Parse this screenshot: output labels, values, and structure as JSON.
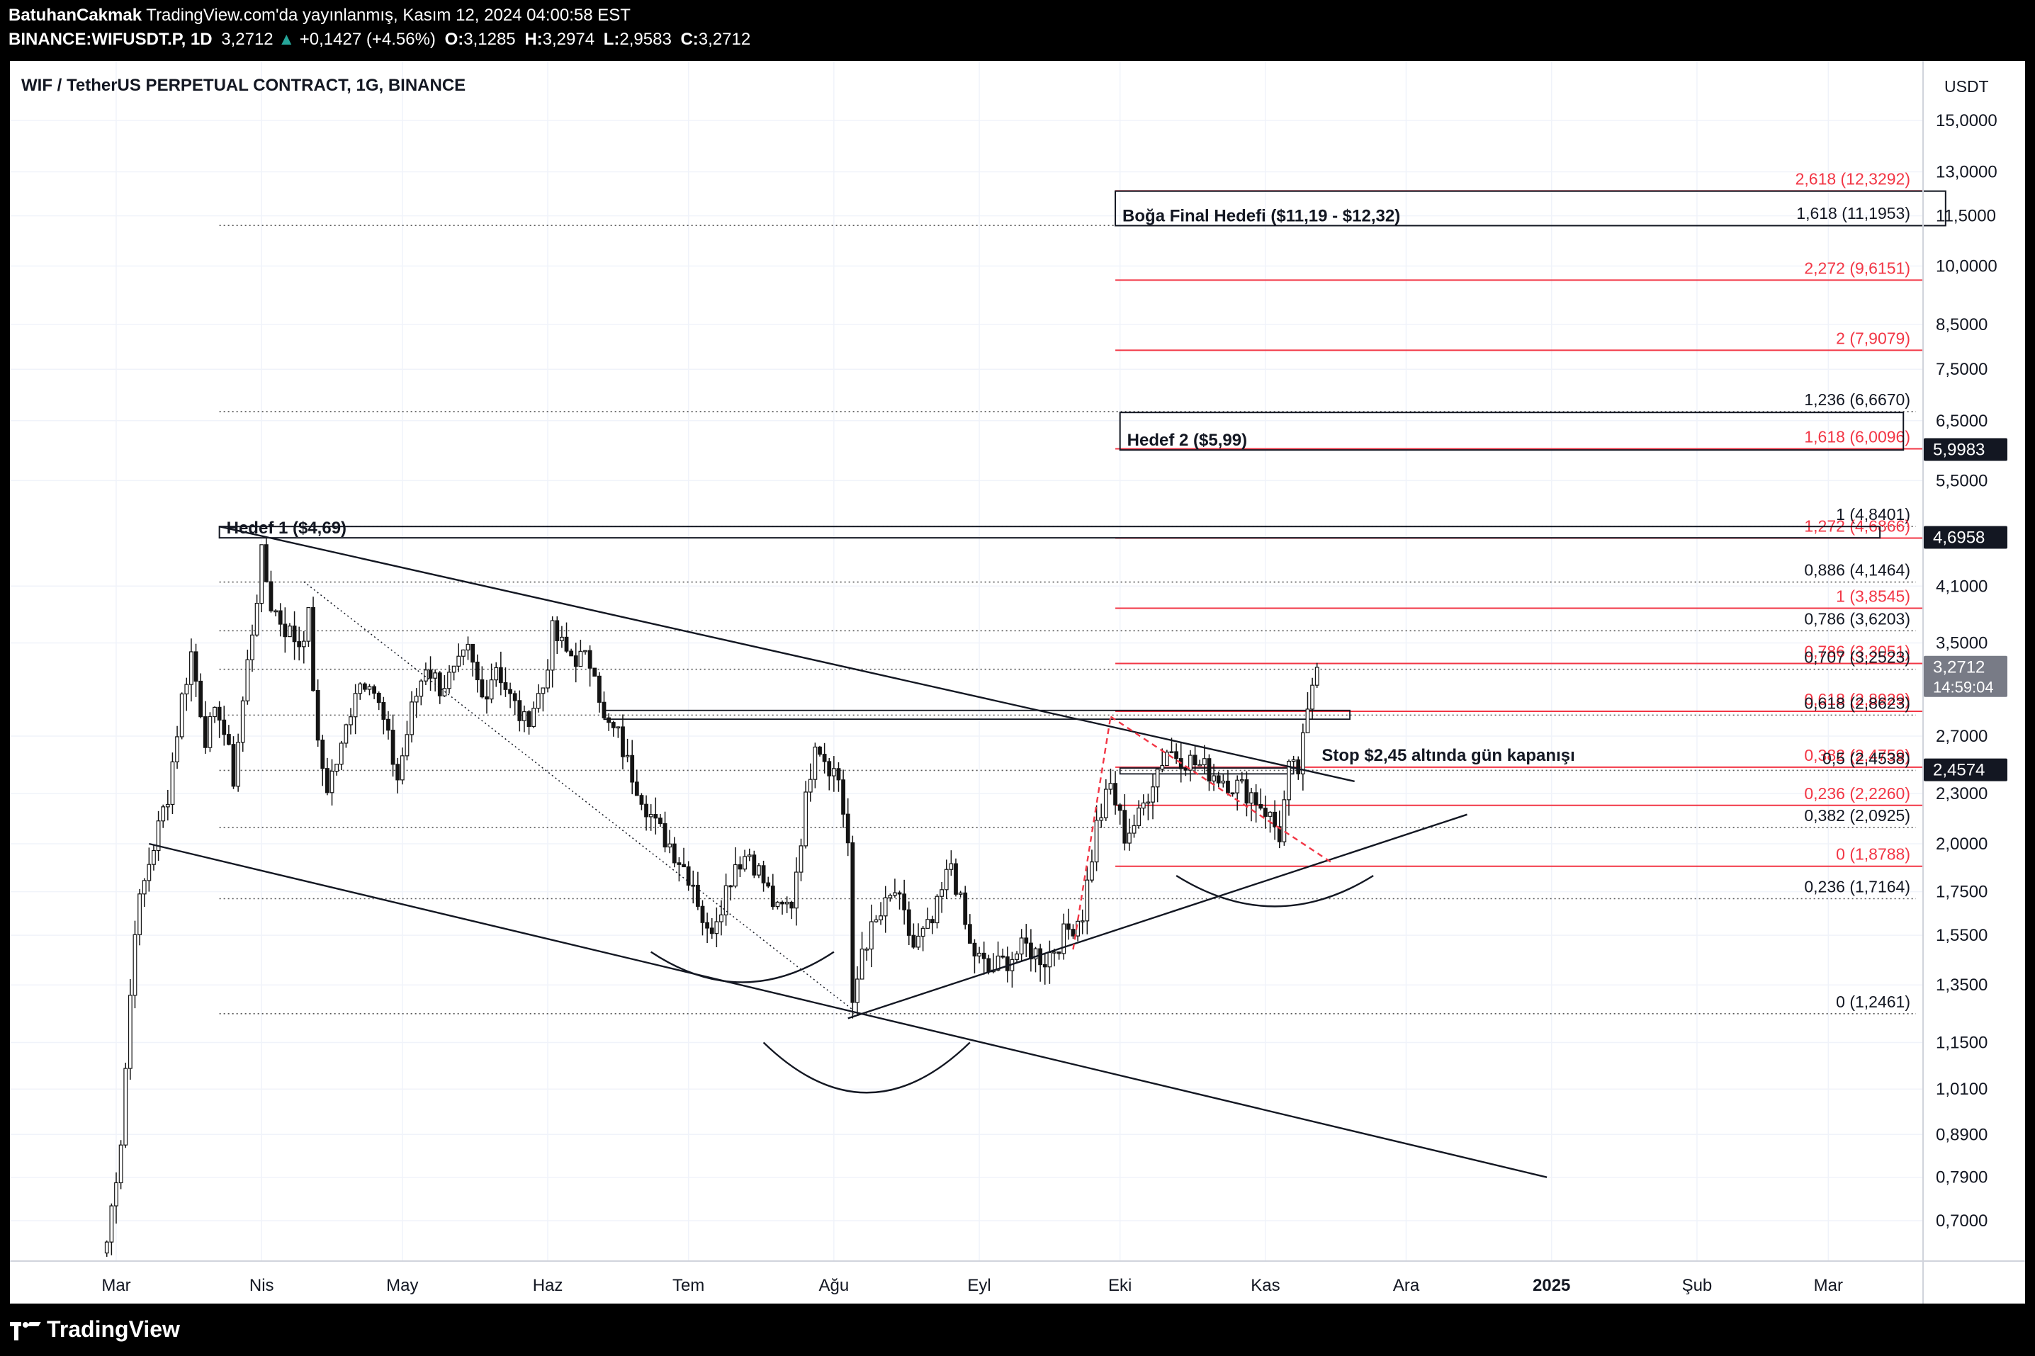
{
  "header": {
    "author": "BatuhanCakmak",
    "published": "TradingView.com'da yayınlanmış, Kasım 12, 2024 04:00:58 EST",
    "symbol": "BINANCE:WIFUSDT.P, 1D",
    "last": "3,2712",
    "change": "+0,1427 (+4.56%)",
    "o_label": "O:",
    "o_val": "3,1285",
    "h_label": "H:",
    "h_val": "3,2974",
    "l_label": "L:",
    "l_val": "2,9583",
    "c_label": "C:",
    "c_val": "3,2712"
  },
  "chart_title": "WIF / TetherUS PERPETUAL CONTRACT, 1G, BINANCE",
  "currency": "USDT",
  "footer": {
    "brand": "TradingView"
  },
  "colors": {
    "candle": "#141414",
    "accent_red": "#f23645",
    "background": "#ffffff"
  },
  "chart_data": {
    "type": "candlestick",
    "scale": "log",
    "y_ticks": [
      {
        "value": 15.0,
        "label": "15,0000"
      },
      {
        "value": 13.0,
        "label": "13,0000"
      },
      {
        "value": 11.5,
        "label": "11,5000"
      },
      {
        "value": 10.0,
        "label": "10,0000"
      },
      {
        "value": 8.5,
        "label": "8,5000"
      },
      {
        "value": 7.5,
        "label": "7,5000"
      },
      {
        "value": 6.5,
        "label": "6,5000"
      },
      {
        "value": 5.5,
        "label": "5,5000"
      },
      {
        "value": 4.1,
        "label": "4,1000"
      },
      {
        "value": 3.5,
        "label": "3,5000"
      },
      {
        "value": 2.7,
        "label": "2,7000"
      },
      {
        "value": 2.3,
        "label": "2,3000"
      },
      {
        "value": 2.0,
        "label": "2,0000"
      },
      {
        "value": 1.75,
        "label": "1,7500"
      },
      {
        "value": 1.55,
        "label": "1,5500"
      },
      {
        "value": 1.35,
        "label": "1,3500"
      },
      {
        "value": 1.15,
        "label": "1,1500"
      },
      {
        "value": 1.01,
        "label": "1,0100"
      },
      {
        "value": 0.89,
        "label": "0,8900"
      },
      {
        "value": 0.79,
        "label": "0,7900"
      },
      {
        "value": 0.7,
        "label": "0,7000"
      }
    ],
    "x_ticks": [
      {
        "date": "2024-03-01",
        "label": "Mar",
        "bold": false
      },
      {
        "date": "2024-04-01",
        "label": "Nis",
        "bold": false
      },
      {
        "date": "2024-05-01",
        "label": "May",
        "bold": false
      },
      {
        "date": "2024-06-01",
        "label": "Haz",
        "bold": false
      },
      {
        "date": "2024-07-01",
        "label": "Tem",
        "bold": false
      },
      {
        "date": "2024-08-01",
        "label": "Ağu",
        "bold": false
      },
      {
        "date": "2024-09-01",
        "label": "Eyl",
        "bold": false
      },
      {
        "date": "2024-10-01",
        "label": "Eki",
        "bold": false
      },
      {
        "date": "2024-11-01",
        "label": "Kas",
        "bold": false
      },
      {
        "date": "2024-12-01",
        "label": "Ara",
        "bold": false
      },
      {
        "date": "2025-01-01",
        "label": "2025",
        "bold": true
      },
      {
        "date": "2025-02-01",
        "label": "Şub",
        "bold": false
      },
      {
        "date": "2025-03-01",
        "label": "Mar",
        "bold": false
      }
    ],
    "price_anchors": [
      [
        "2024-02-28",
        0.66
      ],
      [
        "2024-03-02",
        0.88
      ],
      [
        "2024-03-05",
        1.6
      ],
      [
        "2024-03-08",
        1.9
      ],
      [
        "2024-03-12",
        2.3
      ],
      [
        "2024-03-15",
        3.0
      ],
      [
        "2024-03-17",
        3.4
      ],
      [
        "2024-03-20",
        2.7
      ],
      [
        "2024-03-23",
        2.9
      ],
      [
        "2024-03-26",
        2.4
      ],
      [
        "2024-03-29",
        3.3
      ],
      [
        "2024-03-31",
        4.0
      ],
      [
        "2024-04-01",
        4.45
      ],
      [
        "2024-04-03",
        3.9
      ],
      [
        "2024-04-06",
        3.65
      ],
      [
        "2024-04-09",
        3.5
      ],
      [
        "2024-04-11",
        3.75
      ],
      [
        "2024-04-13",
        2.6
      ],
      [
        "2024-04-15",
        2.35
      ],
      [
        "2024-04-18",
        2.6
      ],
      [
        "2024-04-21",
        3.1
      ],
      [
        "2024-04-24",
        3.2
      ],
      [
        "2024-04-27",
        2.8
      ],
      [
        "2024-04-30",
        2.4
      ],
      [
        "2024-05-03",
        2.9
      ],
      [
        "2024-05-06",
        3.3
      ],
      [
        "2024-05-09",
        3.1
      ],
      [
        "2024-05-12",
        3.2
      ],
      [
        "2024-05-15",
        3.4
      ],
      [
        "2024-05-18",
        3.0
      ],
      [
        "2024-05-21",
        3.3
      ],
      [
        "2024-05-24",
        3.0
      ],
      [
        "2024-05-27",
        2.8
      ],
      [
        "2024-05-31",
        3.1
      ],
      [
        "2024-06-02",
        3.6
      ],
      [
        "2024-06-05",
        3.4
      ],
      [
        "2024-06-08",
        3.35
      ],
      [
        "2024-06-11",
        3.3
      ],
      [
        "2024-06-13",
        2.8
      ],
      [
        "2024-06-16",
        2.7
      ],
      [
        "2024-06-18",
        2.5
      ],
      [
        "2024-06-21",
        2.3
      ],
      [
        "2024-06-24",
        2.1
      ],
      [
        "2024-06-27",
        2.0
      ],
      [
        "2024-07-02",
        1.8
      ],
      [
        "2024-07-05",
        1.55
      ],
      [
        "2024-07-08",
        1.7
      ],
      [
        "2024-07-11",
        1.9
      ],
      [
        "2024-07-14",
        1.95
      ],
      [
        "2024-07-17",
        1.8
      ],
      [
        "2024-07-20",
        1.65
      ],
      [
        "2024-07-23",
        1.7
      ],
      [
        "2024-07-26",
        2.25
      ],
      [
        "2024-07-28",
        2.7
      ],
      [
        "2024-07-30",
        2.55
      ],
      [
        "2024-08-02",
        2.4
      ],
      [
        "2024-08-04",
        2.0
      ],
      [
        "2024-08-05",
        1.25
      ],
      [
        "2024-08-07",
        1.5
      ],
      [
        "2024-08-10",
        1.6
      ],
      [
        "2024-08-14",
        1.75
      ],
      [
        "2024-08-18",
        1.5
      ],
      [
        "2024-08-22",
        1.6
      ],
      [
        "2024-08-26",
        1.9
      ],
      [
        "2024-08-30",
        1.5
      ],
      [
        "2024-09-03",
        1.4
      ],
      [
        "2024-09-07",
        1.45
      ],
      [
        "2024-09-11",
        1.5
      ],
      [
        "2024-09-15",
        1.45
      ],
      [
        "2024-09-19",
        1.55
      ],
      [
        "2024-09-23",
        1.65
      ],
      [
        "2024-09-26",
        2.1
      ],
      [
        "2024-09-29",
        2.35
      ],
      [
        "2024-10-02",
        2.05
      ],
      [
        "2024-10-05",
        2.15
      ],
      [
        "2024-10-08",
        2.4
      ],
      [
        "2024-10-11",
        2.6
      ],
      [
        "2024-10-14",
        2.55
      ],
      [
        "2024-10-17",
        2.5
      ],
      [
        "2024-10-20",
        2.45
      ],
      [
        "2024-10-23",
        2.4
      ],
      [
        "2024-10-26",
        2.35
      ],
      [
        "2024-10-29",
        2.3
      ],
      [
        "2024-11-01",
        2.2
      ],
      [
        "2024-11-04",
        2.05
      ],
      [
        "2024-11-06",
        2.45
      ],
      [
        "2024-11-08",
        2.45
      ],
      [
        "2024-11-10",
        2.85
      ],
      [
        "2024-11-11",
        3.13
      ],
      [
        "2024-11-12",
        3.27
      ]
    ],
    "fibonacci_levels": [
      {
        "label": "2,618 (12,3292)",
        "value": 12.3292,
        "style": "red-solid",
        "x_start": "2024-09-30"
      },
      {
        "label": "1,618 (11,1953)",
        "value": 11.1953,
        "style": "dotted",
        "x_start": "2024-03-23"
      },
      {
        "label": "2,272 (9,6151)",
        "value": 9.6151,
        "style": "red-solid",
        "x_start": "2024-09-30"
      },
      {
        "label": "2 (7,9079)",
        "value": 7.9079,
        "style": "red-solid",
        "x_start": "2024-09-30"
      },
      {
        "label": "1,236 (6,6670)",
        "value": 6.667,
        "style": "dotted",
        "x_start": "2024-03-23"
      },
      {
        "label": "1,618 (6,0096)",
        "value": 6.0096,
        "style": "red-solid",
        "x_start": "2024-09-30"
      },
      {
        "label": "1 (4,8401)",
        "value": 4.8401,
        "style": "dotted",
        "x_start": "2024-03-23"
      },
      {
        "label": "1,272 (4,6866)",
        "value": 4.6866,
        "style": "red-solid",
        "x_start": "2024-09-30"
      },
      {
        "label": "0,886 (4,1464)",
        "value": 4.1464,
        "style": "dotted",
        "x_start": "2024-03-23"
      },
      {
        "label": "1 (3,8545)",
        "value": 3.8545,
        "style": "red-solid",
        "x_start": "2024-09-30"
      },
      {
        "label": "0,786 (3,6203)",
        "value": 3.6203,
        "style": "dotted",
        "x_start": "2024-03-23"
      },
      {
        "label": "0,786 (3,3051)",
        "value": 3.3051,
        "style": "red-solid",
        "x_start": "2024-09-30"
      },
      {
        "label": "0,707 (3,2523)",
        "value": 3.2523,
        "style": "dotted",
        "x_start": "2024-03-23"
      },
      {
        "label": "0,618 (2,8929)",
        "value": 2.8929,
        "style": "red-solid",
        "x_start": "2024-09-30"
      },
      {
        "label": "0,618 (2,8623)",
        "value": 2.8623,
        "style": "dotted",
        "x_start": "2024-03-23"
      },
      {
        "label": "0,382 (2,4759)",
        "value": 2.4759,
        "style": "red-solid",
        "x_start": "2024-09-30"
      },
      {
        "label": "0,5 (2,4538)",
        "value": 2.4538,
        "style": "dotted",
        "x_start": "2024-03-23"
      },
      {
        "label": "0,236 (2,2260)",
        "value": 2.226,
        "style": "red-solid",
        "x_start": "2024-09-30"
      },
      {
        "label": "0,382 (2,0925)",
        "value": 2.0925,
        "style": "dotted",
        "x_start": "2024-03-23"
      },
      {
        "label": "0 (1,8788)",
        "value": 1.8788,
        "style": "red-solid",
        "x_start": "2024-09-30"
      },
      {
        "label": "0,236 (1,7164)",
        "value": 1.7164,
        "style": "dotted",
        "x_start": "2024-03-23"
      },
      {
        "label": "0 (1,2461)",
        "value": 1.2461,
        "style": "dotted",
        "x_start": "2024-03-23"
      }
    ],
    "price_badges": [
      {
        "label": "5,9983",
        "value": 5.9983,
        "style": "dark"
      },
      {
        "label": "4,6958",
        "value": 4.6958,
        "style": "dark"
      },
      {
        "label": "3,2712",
        "sub": "14:59:04",
        "value": 3.2712,
        "style": "gray"
      },
      {
        "label": "2,4574",
        "value": 2.4574,
        "style": "dark"
      }
    ],
    "target_boxes": [
      {
        "label": "Boğa Final Hedefi ($11,19 - $12,32)",
        "low": 11.19,
        "high": 12.32,
        "x0": "2024-09-30",
        "x1": "2025-03-26"
      },
      {
        "label": "Hedef 2 ($5,99)",
        "low": 5.99,
        "high": 6.65,
        "x0": "2024-10-01",
        "x1": "2025-03-17"
      },
      {
        "label": "Hedef 1 ($4,69)",
        "low": 4.69,
        "high": 4.84,
        "x0": "2024-03-23",
        "x1": "2025-03-12"
      }
    ],
    "annotations": [
      {
        "text": "Stop $2,45 altında gün kapanışı",
        "date": "2024-11-13",
        "value": 2.52
      }
    ],
    "trendlines": [
      {
        "from": [
          "2024-03-23",
          4.84
        ],
        "to": [
          "2024-11-20",
          2.38
        ],
        "style": "solid"
      },
      {
        "from": [
          "2024-03-08",
          2.0
        ],
        "to": [
          "2024-12-31",
          0.79
        ],
        "style": "solid"
      },
      {
        "from": [
          "2024-08-04",
          1.23
        ],
        "to": [
          "2024-12-14",
          2.17
        ],
        "style": "solid"
      },
      {
        "from": [
          "2024-04-10",
          4.15
        ],
        "to": [
          "2024-08-05",
          1.26
        ],
        "style": "dotted"
      },
      {
        "from": [
          "2024-09-21",
          1.49
        ],
        "to": [
          "2024-09-29",
          2.85
        ],
        "style": "red-dashed"
      },
      {
        "from": [
          "2024-09-29",
          2.85
        ],
        "to": [
          "2024-11-15",
          1.9
        ],
        "style": "red-dashed"
      }
    ],
    "neckline_zones": [
      {
        "x0": "2024-06-13",
        "x1": "2024-11-19",
        "low": 2.83,
        "high": 2.9
      },
      {
        "x0": "2024-10-01",
        "x1": "2024-11-07",
        "low": 2.43,
        "high": 2.47
      }
    ],
    "arcs": [
      {
        "x0": "2024-06-23",
        "x1": "2024-08-01",
        "y_top": 1.48,
        "y_bottom": 1.36
      },
      {
        "x0": "2024-07-17",
        "x1": "2024-08-30",
        "y_top": 1.15,
        "y_bottom": 1.0
      },
      {
        "x0": "2024-10-13",
        "x1": "2024-11-24",
        "y_top": 1.83,
        "y_bottom": 1.68
      }
    ]
  }
}
